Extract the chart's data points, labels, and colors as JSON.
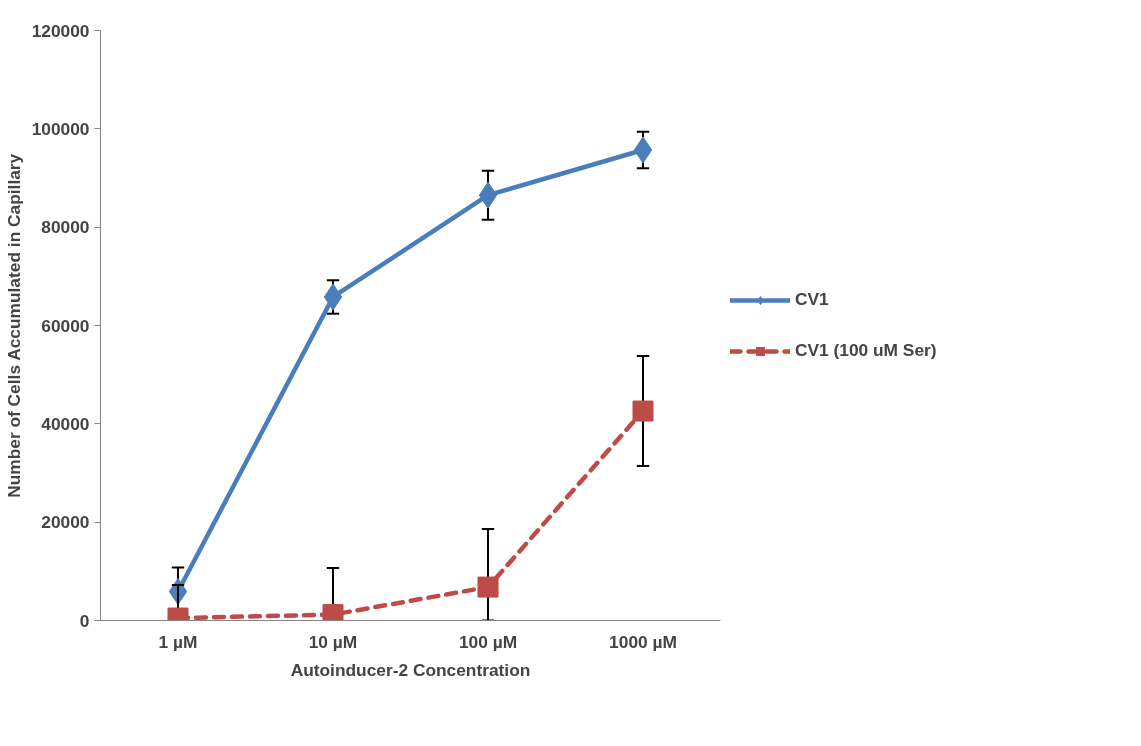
{
  "chart_data": {
    "type": "line",
    "xlabel": "Autoinducer-2 Concentration",
    "ylabel": "Number of Cells Accumulated in Capillary",
    "categories": [
      "1 µM",
      "10 µM",
      "100 µM",
      "1000 µM"
    ],
    "series": [
      {
        "name": "CV1",
        "color": "#4a7ebb",
        "marker": "diamond",
        "line_style": "solid",
        "values": [
          5900,
          65800,
          86500,
          95700
        ],
        "errors": [
          4900,
          3400,
          5000,
          3700
        ]
      },
      {
        "name": "CV1 (100 uM Ser)",
        "color": "#be4b48",
        "marker": "square",
        "line_style": "dashed",
        "values": [
          500,
          1200,
          6800,
          42600
        ],
        "errors": [
          [
            0,
            7200
          ],
          [
            0,
            10700
          ],
          [
            0,
            18600
          ],
          [
            31400,
            53800
          ]
        ]
      }
    ],
    "ylim": [
      0,
      120000
    ],
    "yticks": [
      0,
      20000,
      40000,
      60000,
      80000,
      100000,
      120000
    ],
    "grid": false,
    "legend": "right"
  }
}
